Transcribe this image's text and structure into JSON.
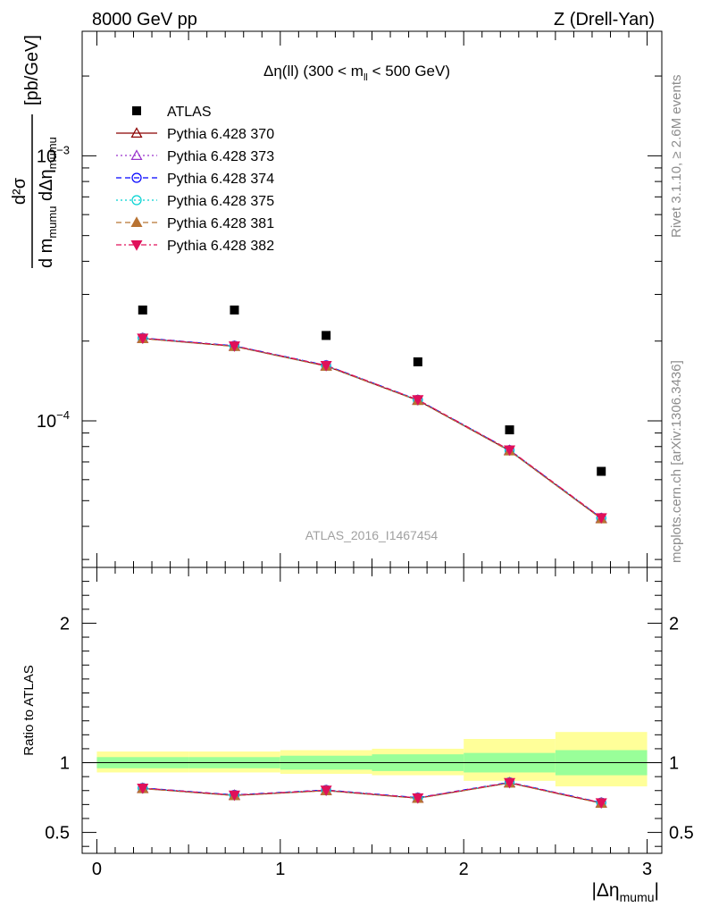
{
  "header": {
    "left": "8000 GeV pp",
    "right": "Z (Drell-Yan)"
  },
  "side_text": {
    "rivet": "Rivet 3.1.10, ≥ 2.6M events",
    "mcplots": "mcplots.cern.ch [arXiv:1306.3436]"
  },
  "analysis_id": "ATLAS_2016_I1467454",
  "plot_title": {
    "prefix": "Δη(ll) (300 < m",
    "sub": "ll",
    "suffix": " < 500 GeV)"
  },
  "ylabel": {
    "numer": "d²σ",
    "denom": "d m",
    "denom_sub": "mumu",
    "denom_mid": " dΔη",
    "denom_sub2": "mumu",
    "unit": "[pb/GeV]"
  },
  "ratio_ylabel": "Ratio to ATLAS",
  "xlabel": {
    "main": "|Δη",
    "sub": "mumu",
    "end": "|"
  },
  "colors": {
    "data": "#000000",
    "band_inner": "#99ff99",
    "band_outer": "#ffff99",
    "axis": "#000000",
    "side_text": "#8c8c8c"
  },
  "chart_data": {
    "type": "line",
    "title": "Δη(ll) (300 < m_ll < 500 GeV)",
    "xlabel": "|Δη_mumu|",
    "ylabel": "d²σ / d m_mumu dΔη_mumu [pb/GeV]",
    "xlim": [
      -0.08,
      3.08
    ],
    "ylim": [
      2.8e-05,
      0.00295
    ],
    "yscale": "log",
    "ratio_ylim": [
      0.35,
      2.4
    ],
    "x": [
      0.25,
      0.75,
      1.25,
      1.75,
      2.25,
      2.75
    ],
    "x_edges": [
      0,
      0.5,
      1.0,
      1.5,
      2.0,
      2.5,
      3.0
    ],
    "x_ticks": [
      "0",
      "1",
      "2",
      "3"
    ],
    "y_tick_labels": [
      {
        "base": "10",
        "exp": "−3",
        "value": 0.001
      },
      {
        "base": "10",
        "exp": "−4",
        "value": 0.0001
      }
    ],
    "ratio_ticks": [
      "0.5",
      "1",
      "2"
    ],
    "data": {
      "name": "ATLAS",
      "values": [
        0.000262,
        0.000262,
        0.00021,
        0.000167,
        9.25e-05,
        6.45e-05
      ],
      "band_inner": [
        [
          0.96,
          1.04
        ],
        [
          0.96,
          1.04
        ],
        [
          0.95,
          1.05
        ],
        [
          0.94,
          1.06
        ],
        [
          0.93,
          1.07
        ],
        [
          0.91,
          1.09
        ]
      ],
      "band_outer": [
        [
          0.93,
          1.08
        ],
        [
          0.93,
          1.08
        ],
        [
          0.92,
          1.09
        ],
        [
          0.91,
          1.1
        ],
        [
          0.87,
          1.17
        ],
        [
          0.83,
          1.22
        ]
      ]
    },
    "series": [
      {
        "name": "Pythia 6.428 370",
        "color": "#8b0000",
        "dash": "",
        "marker": "triangle-open",
        "values": [
          0.0002045,
          0.000191,
          0.000161,
          0.0001195,
          7.72e-05,
          4.28e-05
        ],
        "ratio": [
          0.815,
          0.765,
          0.8,
          0.745,
          0.855,
          0.71
        ]
      },
      {
        "name": "Pythia 6.428 373",
        "color": "#9932cc",
        "dash": "2,3",
        "marker": "triangle-open",
        "values": [
          0.000205,
          0.0001915,
          0.0001615,
          0.0001198,
          7.74e-05,
          4.29e-05
        ],
        "ratio": [
          0.817,
          0.767,
          0.802,
          0.747,
          0.857,
          0.712
        ]
      },
      {
        "name": "Pythia 6.428 374",
        "color": "#0000ff",
        "dash": "6,4",
        "marker": "circle-open",
        "values": [
          0.0002055,
          0.000192,
          0.000162,
          0.00012,
          7.76e-05,
          4.3e-05
        ],
        "ratio": [
          0.819,
          0.769,
          0.804,
          0.749,
          0.859,
          0.714
        ]
      },
      {
        "name": "Pythia 6.428 375",
        "color": "#00d2d2",
        "dash": "2,3",
        "marker": "circle-open",
        "values": [
          0.0002048,
          0.0001912,
          0.0001612,
          0.0001197,
          7.73e-05,
          4.29e-05
        ],
        "ratio": [
          0.816,
          0.766,
          0.801,
          0.746,
          0.856,
          0.711
        ]
      },
      {
        "name": "Pythia 6.428 381",
        "color": "#b87333",
        "dash": "6,4",
        "marker": "triangle-filled",
        "values": [
          0.0002042,
          0.0001908,
          0.0001608,
          0.0001193,
          7.7e-05,
          4.27e-05
        ],
        "ratio": [
          0.814,
          0.764,
          0.799,
          0.744,
          0.854,
          0.709
        ]
      },
      {
        "name": "Pythia 6.428 382",
        "color": "#e0105a",
        "dash": "6,3,2,3",
        "marker": "triangledown-filled",
        "values": [
          0.0002052,
          0.0001918,
          0.0001618,
          0.0001202,
          7.77e-05,
          4.31e-05
        ],
        "ratio": [
          0.818,
          0.768,
          0.803,
          0.748,
          0.858,
          0.713
        ]
      }
    ]
  }
}
